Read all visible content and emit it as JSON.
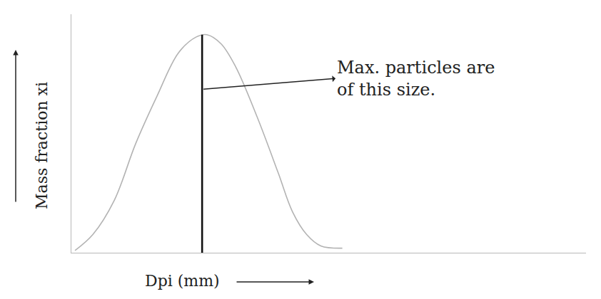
{
  "chart_data": {
    "type": "line",
    "x_title": "Dpi (mm)",
    "y_title": "Mass fraction xi",
    "xlim": [
      0,
      18.5
    ],
    "ylim": [
      0,
      1.05
    ],
    "xticks": [],
    "yticks": [],
    "tick_labels": false,
    "grid": false,
    "series": [
      {
        "color": "#b3b3b3",
        "line_style": "solid",
        "x": [
          0.13,
          0.77,
          1.54,
          2.31,
          3.08,
          3.85,
          4.49,
          4.87,
          5.38,
          5.9,
          6.67,
          7.44,
          7.95,
          8.46,
          8.97,
          9.74
        ],
        "values": [
          0.01,
          0.08,
          0.23,
          0.48,
          0.69,
          0.88,
          0.95,
          0.96,
          0.92,
          0.82,
          0.6,
          0.35,
          0.18,
          0.08,
          0.03,
          0.02
        ]
      },
      {
        "color": "#111111",
        "line_style": "solid",
        "x": [
          4.7,
          4.7
        ],
        "values": [
          0,
          0.96
        ]
      }
    ],
    "annotations": [
      {
        "text": [
          "Max. particles are",
          "of this size."
        ],
        "x": 4.75,
        "y": 0.72
      }
    ]
  }
}
